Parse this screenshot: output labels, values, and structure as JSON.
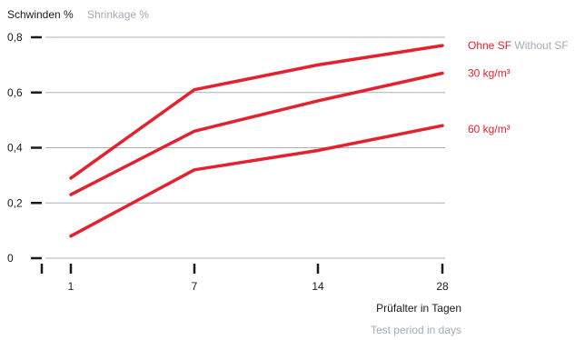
{
  "chart_data": {
    "type": "line",
    "title": "Schwinden %",
    "subtitle": "Shrinkage %",
    "xlabel": "Prüfalter in Tagen",
    "xlabel_sub": "Test period in days",
    "x": [
      1,
      7,
      14,
      28
    ],
    "x_ticks": [
      "1",
      "7",
      "14",
      "28"
    ],
    "y_ticks": [
      "0",
      "0,2",
      "0,4",
      "0,6",
      "0,8"
    ],
    "ylim": [
      0,
      0.8
    ],
    "grid": true,
    "series": [
      {
        "name": "Ohne SF",
        "name_sub": "Without SF",
        "values": [
          0.29,
          0.61,
          0.7,
          0.77
        ]
      },
      {
        "name": "30 kg/m³",
        "name_sub": "",
        "values": [
          0.23,
          0.46,
          0.57,
          0.67
        ]
      },
      {
        "name": "60 kg/m³",
        "name_sub": "",
        "values": [
          0.08,
          0.32,
          0.39,
          0.48
        ]
      }
    ],
    "colors": {
      "series": "#e2222f",
      "grid": "#a9b0b8",
      "axis": "#1a1a1a",
      "sub_text": "#a3abb5"
    }
  }
}
